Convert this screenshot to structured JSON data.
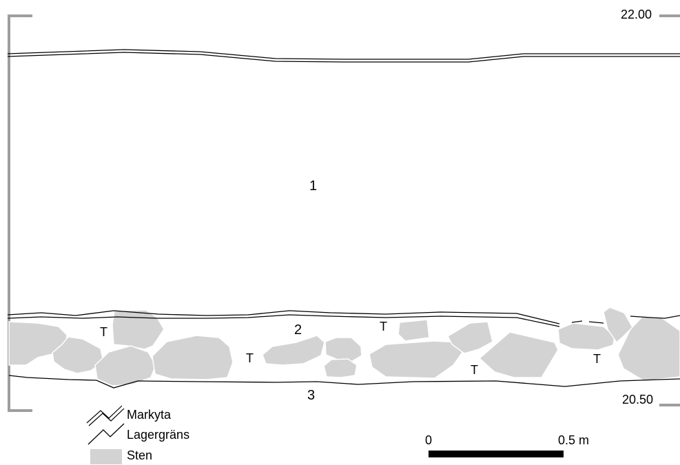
{
  "elevations": {
    "top": "22.00",
    "bottom": "20.50"
  },
  "layers": {
    "layer1": "1",
    "layer2": "2",
    "layer3": "3"
  },
  "markers": {
    "t": "T"
  },
  "legend": {
    "markyta": "Markyta",
    "lagergrans": "Lagergräns",
    "sten": "Sten"
  },
  "scale_bar": {
    "start": "0",
    "end": "0.5 m"
  },
  "colors": {
    "stone": "#d3d3d3",
    "frame": "#9e9e9e",
    "line": "#000000"
  }
}
